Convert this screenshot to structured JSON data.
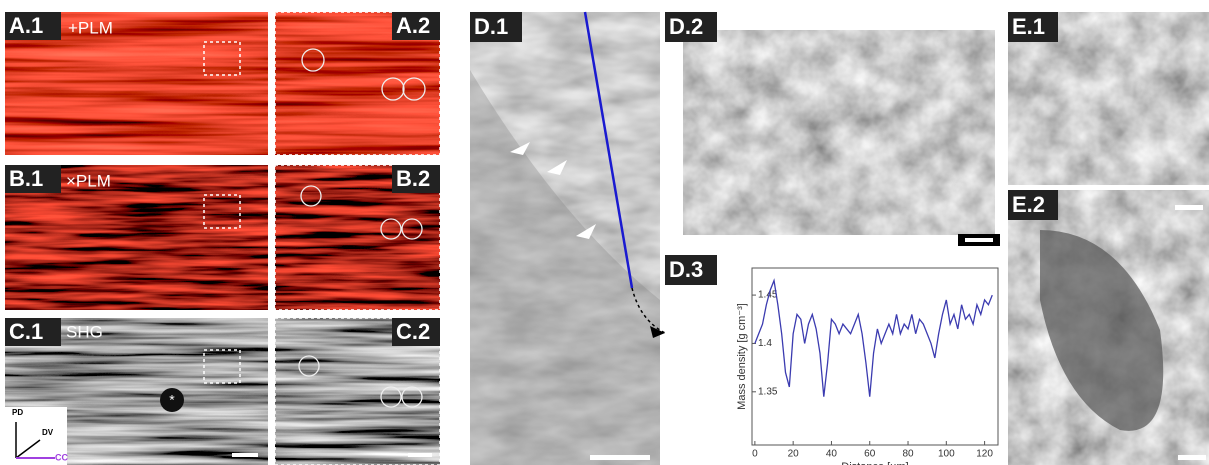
{
  "labels": {
    "A1": "A.1",
    "A2": "A.2",
    "B1": "B.1",
    "B2": "B.2",
    "C1": "C.1",
    "C2": "C.2",
    "D1": "D.1",
    "D2": "D.2",
    "D3": "D.3",
    "E1": "E.1",
    "E2": "E.2"
  },
  "modes": {
    "A1": "+PLM",
    "B1": "×PLM",
    "C1": "SHG"
  },
  "orientation": {
    "pd": "PD",
    "dv": "DV",
    "cc": "CC"
  },
  "star": "*",
  "chart_data": {
    "type": "line",
    "xlabel": "Distance [µm]",
    "ylabel": "Mass density [g cm⁻³]",
    "x": [
      0,
      2,
      4,
      6,
      8,
      10,
      12,
      14,
      16,
      18,
      20,
      22,
      24,
      26,
      28,
      30,
      32,
      34,
      36,
      38,
      40,
      42,
      44,
      46,
      48,
      50,
      52,
      54,
      56,
      58,
      60,
      62,
      64,
      66,
      68,
      70,
      72,
      74,
      76,
      78,
      80,
      82,
      84,
      86,
      88,
      90,
      92,
      94,
      96,
      98,
      100,
      102,
      104,
      106,
      108,
      110,
      112,
      114,
      116,
      118,
      120,
      122,
      124
    ],
    "series": [
      {
        "color": "#3b3bb0",
        "values": [
          1.4,
          1.41,
          1.42,
          1.44,
          1.455,
          1.465,
          1.44,
          1.41,
          1.37,
          1.355,
          1.41,
          1.43,
          1.425,
          1.4,
          1.42,
          1.43,
          1.415,
          1.39,
          1.345,
          1.38,
          1.425,
          1.42,
          1.41,
          1.42,
          1.415,
          1.41,
          1.42,
          1.43,
          1.41,
          1.38,
          1.345,
          1.39,
          1.415,
          1.4,
          1.41,
          1.42,
          1.41,
          1.43,
          1.41,
          1.42,
          1.415,
          1.43,
          1.41,
          1.425,
          1.42,
          1.41,
          1.4,
          1.385,
          1.41,
          1.43,
          1.445,
          1.42,
          1.43,
          1.415,
          1.44,
          1.425,
          1.43,
          1.42,
          1.44,
          1.43,
          1.445,
          1.44,
          1.45
        ]
      }
    ],
    "xlim": [
      -1.5,
      127
    ],
    "ylim": [
      1.295,
      1.478
    ],
    "xticks": [
      0,
      20,
      40,
      60,
      80,
      100,
      120
    ],
    "yticks": [
      1.35,
      1.4,
      1.45
    ]
  }
}
